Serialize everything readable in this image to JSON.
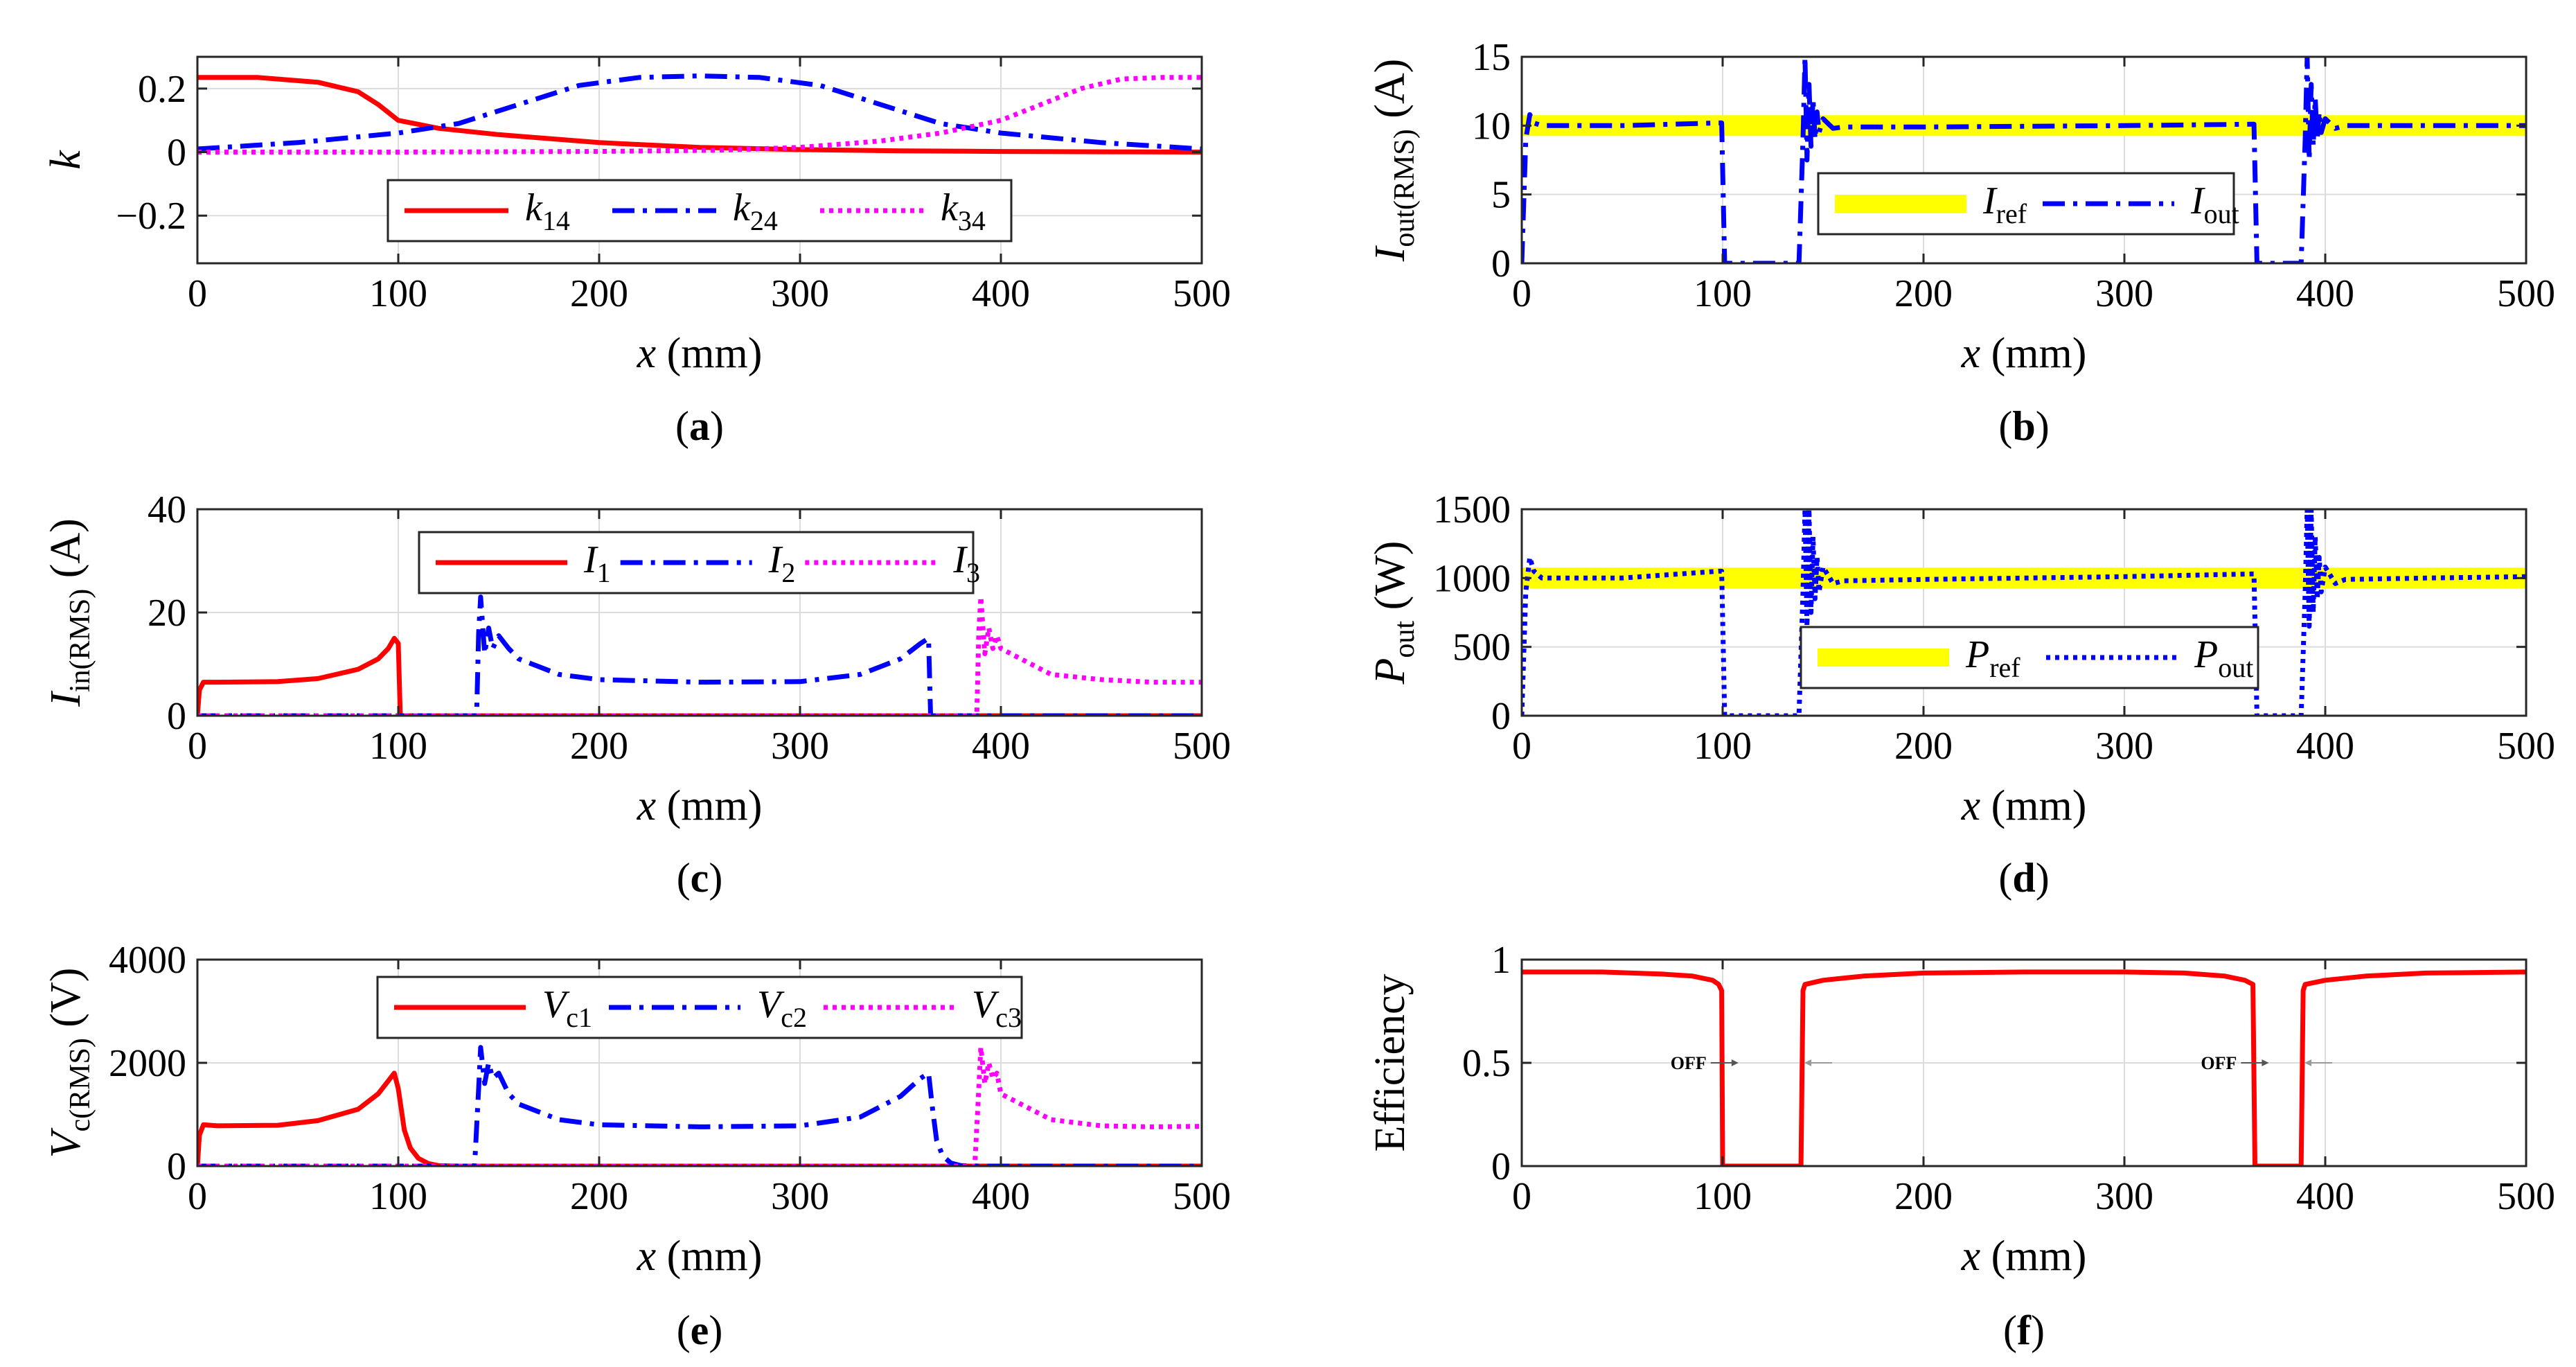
{
  "chart_data": [
    {
      "id": "a",
      "type": "line",
      "caption": "a",
      "xlabel": "x (mm)",
      "ylabel": "k",
      "xlim": [
        0,
        500
      ],
      "ylim": [
        -0.35,
        0.3
      ],
      "xticks": [
        0,
        100,
        200,
        300,
        400,
        500
      ],
      "yticks": [
        -0.2,
        0,
        0.2
      ],
      "ytick_labels": [
        "−0.2",
        "0",
        "0.2"
      ],
      "grid": true,
      "legend_position": "bottom-center",
      "series": [
        {
          "name": "k14",
          "color": "#ff0000",
          "style": "solid",
          "x": [
            0,
            30,
            60,
            80,
            90,
            100,
            120,
            150,
            200,
            250,
            300,
            350,
            400,
            450,
            500
          ],
          "y": [
            0.235,
            0.235,
            0.22,
            0.19,
            0.15,
            0.1,
            0.075,
            0.055,
            0.03,
            0.015,
            0.008,
            0.004,
            0.002,
            0.001,
            0
          ]
        },
        {
          "name": "k24",
          "color": "#0000ff",
          "style": "dashdot",
          "x": [
            0,
            50,
            100,
            130,
            160,
            190,
            220,
            250,
            280,
            310,
            340,
            370,
            400,
            450,
            500
          ],
          "y": [
            0.01,
            0.03,
            0.06,
            0.09,
            0.15,
            0.21,
            0.235,
            0.24,
            0.235,
            0.21,
            0.15,
            0.09,
            0.06,
            0.03,
            0.01
          ]
        },
        {
          "name": "k34",
          "color": "#ff00ff",
          "style": "dotted",
          "x": [
            0,
            100,
            200,
            260,
            300,
            340,
            370,
            400,
            420,
            440,
            460,
            480,
            500
          ],
          "y": [
            0,
            0,
            0.002,
            0.006,
            0.015,
            0.035,
            0.06,
            0.1,
            0.15,
            0.2,
            0.23,
            0.235,
            0.235
          ]
        }
      ]
    },
    {
      "id": "b",
      "type": "line",
      "caption": "b",
      "xlabel": "x (mm)",
      "ylabel": "I out(RMS) (A)",
      "ylabel_main": "I",
      "ylabel_sub": "out(RMS)",
      "ylabel_unit": "(A)",
      "xlim": [
        0,
        500
      ],
      "ylim": [
        0,
        15
      ],
      "xticks": [
        0,
        100,
        200,
        300,
        400,
        500
      ],
      "yticks": [
        0,
        5,
        10,
        15
      ],
      "ytick_labels": [
        "0",
        "5",
        "10",
        "15"
      ],
      "grid": true,
      "legend_position": "bottom-center",
      "series": [
        {
          "name": "Iref",
          "color": "#ffff00",
          "style": "thick",
          "x": [
            0,
            500
          ],
          "y": [
            10,
            10
          ]
        },
        {
          "name": "Iout",
          "color": "#0000ff",
          "style": "dashdot",
          "x": [
            0,
            2,
            4,
            6,
            10,
            50,
            98,
            99.5,
            101,
            138,
            140,
            141,
            142,
            143,
            144,
            145,
            146,
            147,
            148,
            150,
            155,
            160,
            200,
            300,
            363,
            364.5,
            366,
            388,
            390,
            391,
            392,
            393,
            394,
            395,
            396,
            397,
            398,
            400,
            405,
            410,
            450,
            500
          ],
          "y": [
            0,
            9,
            10.8,
            10.2,
            10,
            10,
            10.2,
            10.2,
            0,
            0,
            9,
            15,
            7.5,
            13,
            8.5,
            12,
            9,
            11,
            9.5,
            10.5,
            9.8,
            9.9,
            9.9,
            10,
            10.1,
            10.1,
            0,
            0,
            9,
            15,
            7.5,
            13,
            8.5,
            12,
            9,
            11,
            9.5,
            10.5,
            9.8,
            10,
            10,
            10
          ]
        }
      ]
    },
    {
      "id": "c",
      "type": "line",
      "caption": "c",
      "xlabel": "x (mm)",
      "ylabel": "I in(RMS) (A)",
      "ylabel_main": "I",
      "ylabel_sub": "in(RMS)",
      "ylabel_unit": "(A)",
      "xlim": [
        0,
        500
      ],
      "ylim": [
        0,
        40
      ],
      "xticks": [
        0,
        100,
        200,
        300,
        400,
        500
      ],
      "yticks": [
        0,
        20,
        40
      ],
      "ytick_labels": [
        "0",
        "20",
        "40"
      ],
      "grid": true,
      "legend_position": "top-center",
      "series": [
        {
          "name": "I1",
          "color": "#ff0000",
          "style": "solid",
          "x": [
            0,
            1,
            3,
            10,
            40,
            60,
            80,
            90,
            95,
            98,
            100,
            101,
            102,
            500
          ],
          "y": [
            0,
            5,
            6.5,
            6.5,
            6.6,
            7.2,
            9,
            11,
            13,
            15,
            14,
            0,
            0,
            0
          ]
        },
        {
          "name": "I2",
          "color": "#0000ff",
          "style": "dashdot",
          "x": [
            0,
            139,
            140,
            141,
            143,
            145,
            147,
            150,
            155,
            160,
            180,
            200,
            250,
            300,
            330,
            350,
            360,
            364,
            365,
            366,
            500
          ],
          "y": [
            0,
            0,
            16,
            23,
            12,
            17,
            13,
            15.5,
            13,
            11,
            8,
            7,
            6.5,
            6.6,
            8,
            11,
            14,
            15,
            0,
            0,
            0
          ]
        },
        {
          "name": "I3",
          "color": "#ff00ff",
          "style": "dotted",
          "x": [
            0,
            388,
            389,
            390,
            392,
            394,
            396,
            398,
            400,
            410,
            425,
            450,
            475,
            500
          ],
          "y": [
            0,
            0,
            16,
            23,
            12,
            17,
            13,
            15.5,
            13,
            11,
            8,
            7,
            6.5,
            6.5
          ]
        }
      ]
    },
    {
      "id": "d",
      "type": "line",
      "caption": "d",
      "xlabel": "x (mm)",
      "ylabel": "P out (W)",
      "ylabel_main": "P",
      "ylabel_sub": "out",
      "ylabel_unit": "(W)",
      "xlim": [
        0,
        500
      ],
      "ylim": [
        0,
        1500
      ],
      "xticks": [
        0,
        100,
        200,
        300,
        400,
        500
      ],
      "yticks": [
        0,
        500,
        1000,
        1500
      ],
      "ytick_labels": [
        "0",
        "500",
        "1000",
        "1500"
      ],
      "grid": true,
      "legend_position": "bottom-center",
      "series": [
        {
          "name": "Pref",
          "color": "#ffff00",
          "style": "thick",
          "x": [
            0,
            500
          ],
          "y": [
            1000,
            1000
          ]
        },
        {
          "name": "Pout",
          "color": "#0000ff",
          "style": "dotted",
          "x": [
            0,
            2,
            4,
            6,
            10,
            50,
            98,
            99.5,
            101,
            138,
            140,
            141,
            142,
            143,
            144,
            145,
            146,
            147,
            148,
            150,
            155,
            160,
            200,
            300,
            363,
            364.5,
            366,
            388,
            390,
            391,
            392,
            393,
            394,
            395,
            396,
            397,
            398,
            400,
            405,
            410,
            450,
            500
          ],
          "y": [
            0,
            900,
            1150,
            1050,
            1000,
            1000,
            1050,
            1050,
            0,
            0,
            900,
            1500,
            650,
            1500,
            750,
            1300,
            850,
            1150,
            900,
            1080,
            960,
            980,
            990,
            1010,
            1030,
            1030,
            0,
            0,
            900,
            1500,
            650,
            1500,
            750,
            1300,
            850,
            1150,
            900,
            1080,
            960,
            990,
            1000,
            1010
          ]
        }
      ]
    },
    {
      "id": "e",
      "type": "line",
      "caption": "e",
      "xlabel": "x (mm)",
      "ylabel": "V c(RMS) (V)",
      "ylabel_main": "V",
      "ylabel_sub": "c(RMS)",
      "ylabel_unit": "(V)",
      "xlim": [
        0,
        500
      ],
      "ylim": [
        0,
        4000
      ],
      "xticks": [
        0,
        100,
        200,
        300,
        400,
        500
      ],
      "yticks": [
        0,
        2000,
        4000
      ],
      "ytick_labels": [
        "0",
        "2000",
        "4000"
      ],
      "grid": true,
      "legend_position": "top-center",
      "series": [
        {
          "name": "Vc1",
          "color": "#ff0000",
          "style": "solid",
          "x": [
            0,
            1,
            3,
            10,
            40,
            60,
            80,
            90,
            95,
            98,
            100,
            103,
            106,
            110,
            115,
            120,
            130,
            500
          ],
          "y": [
            0,
            600,
            800,
            780,
            790,
            880,
            1100,
            1400,
            1650,
            1800,
            1500,
            700,
            350,
            150,
            50,
            10,
            0,
            0
          ]
        },
        {
          "name": "Vc2",
          "color": "#0000ff",
          "style": "dashdot",
          "x": [
            0,
            138,
            140,
            141,
            143,
            145,
            147,
            150,
            155,
            160,
            180,
            200,
            250,
            300,
            330,
            350,
            360,
            364,
            366,
            368,
            371,
            375,
            380,
            390,
            500
          ],
          "y": [
            0,
            0,
            1500,
            2300,
            1600,
            2000,
            1700,
            1800,
            1400,
            1200,
            900,
            800,
            760,
            780,
            950,
            1350,
            1700,
            1800,
            1100,
            500,
            200,
            60,
            10,
            0,
            0
          ]
        },
        {
          "name": "Vc3",
          "color": "#ff00ff",
          "style": "dotted",
          "x": [
            0,
            387,
            389,
            390,
            392,
            394,
            396,
            398,
            400,
            410,
            425,
            450,
            475,
            500
          ],
          "y": [
            0,
            0,
            1500,
            2300,
            1600,
            2000,
            1700,
            1800,
            1400,
            1200,
            900,
            780,
            760,
            770
          ]
        }
      ]
    },
    {
      "id": "f",
      "type": "line",
      "caption": "f",
      "xlabel": "x (mm)",
      "ylabel": "Efficiency",
      "xlim": [
        0,
        500
      ],
      "ylim": [
        0,
        1
      ],
      "xticks": [
        0,
        100,
        200,
        300,
        400,
        500
      ],
      "yticks": [
        0,
        0.5,
        1
      ],
      "ytick_labels": [
        "0",
        "0.5",
        "1"
      ],
      "grid": true,
      "annotations": [
        {
          "text": "OFF",
          "x": 92,
          "y": 0.5
        },
        {
          "text": "OFF",
          "x": 356,
          "y": 0.5
        }
      ],
      "series": [
        {
          "name": "Efficiency",
          "color": "#ff0000",
          "style": "solid",
          "x": [
            0,
            40,
            70,
            85,
            95,
            98,
            99.5,
            100,
            139,
            140,
            141,
            150,
            170,
            200,
            250,
            300,
            330,
            350,
            360,
            364,
            365,
            388,
            389,
            390,
            400,
            420,
            450,
            500
          ],
          "y": [
            0.94,
            0.94,
            0.93,
            0.92,
            0.9,
            0.88,
            0.85,
            0,
            0,
            0.85,
            0.88,
            0.9,
            0.92,
            0.935,
            0.94,
            0.94,
            0.935,
            0.92,
            0.9,
            0.88,
            0,
            0,
            0.85,
            0.88,
            0.9,
            0.92,
            0.935,
            0.94
          ]
        }
      ]
    }
  ]
}
